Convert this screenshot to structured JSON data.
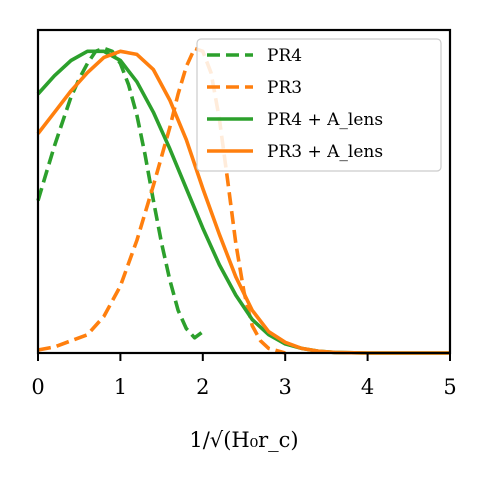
{
  "chart_data": {
    "type": "line",
    "title": "",
    "xlabel": "1/√(H₀r_c)",
    "ylabel": "",
    "xlim": [
      0,
      5
    ],
    "ylim": [
      0,
      1.06
    ],
    "xticks": [
      "0",
      "1",
      "2",
      "3",
      "4",
      "5"
    ],
    "grid": false,
    "legend_position": "top-right",
    "series": [
      {
        "name": "PR4",
        "color": "#2ca02c",
        "dash": "dashed",
        "x": [
          0.0,
          0.1,
          0.2,
          0.3,
          0.4,
          0.5,
          0.6,
          0.7,
          0.8,
          0.9,
          1.0,
          1.1,
          1.2,
          1.3,
          1.4,
          1.5,
          1.6,
          1.7,
          1.8,
          1.9,
          2.0
        ],
        "y": [
          0.5,
          0.59,
          0.68,
          0.76,
          0.84,
          0.9,
          0.95,
          0.99,
          1.0,
          0.99,
          0.95,
          0.88,
          0.78,
          0.65,
          0.5,
          0.36,
          0.24,
          0.14,
          0.08,
          0.05,
          0.07
        ]
      },
      {
        "name": "PR3",
        "color": "#ff7f0e",
        "dash": "dashed",
        "x": [
          0.0,
          0.2,
          0.4,
          0.6,
          0.8,
          1.0,
          1.2,
          1.4,
          1.6,
          1.7,
          1.8,
          1.9,
          2.0,
          2.1,
          2.2,
          2.3,
          2.4,
          2.5,
          2.6,
          2.7,
          2.8,
          3.0
        ],
        "y": [
          0.01,
          0.02,
          0.04,
          0.06,
          0.12,
          0.22,
          0.37,
          0.55,
          0.74,
          0.85,
          0.94,
          1.0,
          0.99,
          0.92,
          0.77,
          0.57,
          0.36,
          0.2,
          0.09,
          0.04,
          0.015,
          0.0
        ]
      },
      {
        "name": "PR4 + A_lens",
        "color": "#2ca02c",
        "dash": "solid",
        "x": [
          0.0,
          0.2,
          0.4,
          0.6,
          0.8,
          1.0,
          1.2,
          1.4,
          1.6,
          1.8,
          2.0,
          2.2,
          2.4,
          2.6,
          2.8,
          3.0,
          3.2,
          3.4,
          3.6,
          4.0,
          4.5,
          5.0
        ],
        "y": [
          0.85,
          0.91,
          0.96,
          0.99,
          0.99,
          0.96,
          0.89,
          0.79,
          0.67,
          0.54,
          0.41,
          0.29,
          0.19,
          0.11,
          0.06,
          0.03,
          0.015,
          0.006,
          0.002,
          0.0,
          0.0,
          0.0
        ]
      },
      {
        "name": "PR3 + A_lens",
        "color": "#ff7f0e",
        "dash": "solid",
        "x": [
          0.0,
          0.2,
          0.4,
          0.6,
          0.8,
          1.0,
          1.2,
          1.4,
          1.6,
          1.8,
          2.0,
          2.2,
          2.4,
          2.6,
          2.8,
          3.0,
          3.2,
          3.4,
          3.6,
          4.0,
          4.5,
          5.0
        ],
        "y": [
          0.72,
          0.79,
          0.86,
          0.92,
          0.97,
          0.99,
          0.98,
          0.93,
          0.83,
          0.7,
          0.54,
          0.39,
          0.25,
          0.14,
          0.07,
          0.035,
          0.015,
          0.006,
          0.002,
          0.0,
          0.0,
          0.0
        ]
      }
    ]
  }
}
